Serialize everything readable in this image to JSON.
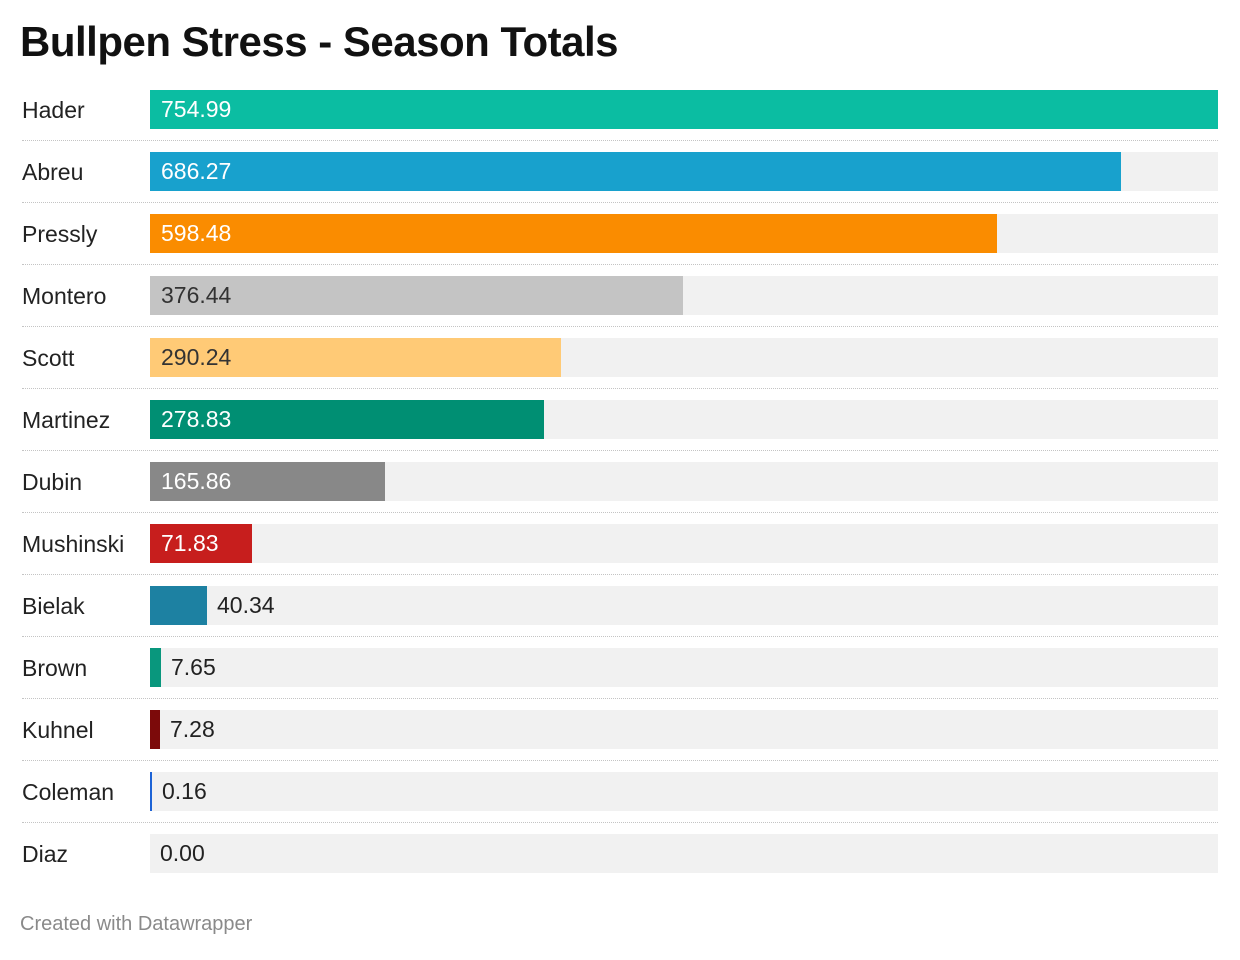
{
  "chart_data": {
    "type": "bar",
    "title": "Bullpen Stress - Season Totals",
    "categories": [
      "Hader",
      "Abreu",
      "Pressly",
      "Montero",
      "Scott",
      "Martinez",
      "Dubin",
      "Mushinski",
      "Bielak",
      "Brown",
      "Kuhnel",
      "Coleman",
      "Diaz"
    ],
    "values": [
      754.99,
      686.27,
      598.48,
      376.44,
      290.24,
      278.83,
      165.86,
      71.83,
      40.34,
      7.65,
      7.28,
      0.16,
      0.0
    ],
    "value_labels": [
      "754.99",
      "686.27",
      "598.48",
      "376.44",
      "290.24",
      "278.83",
      "165.86",
      "71.83",
      "40.34",
      "7.65",
      "7.28",
      "0.16",
      "0.00"
    ],
    "colors": [
      "#0bbda2",
      "#18a1cd",
      "#fa8c00",
      "#c4c4c4",
      "#ffca76",
      "#008f73",
      "#888888",
      "#c71e1d",
      "#1d81a2",
      "#09977d",
      "#7c0a0a",
      "#1d63d6",
      "#cccccc"
    ],
    "label_colors": [
      "#ffffff",
      "#ffffff",
      "#ffffff",
      "#333333",
      "#333333",
      "#ffffff",
      "#ffffff",
      "#ffffff",
      "#222222",
      "#222222",
      "#222222",
      "#222222",
      "#222222"
    ],
    "xlim": [
      0,
      754.99
    ],
    "orientation": "horizontal",
    "grid": false,
    "track_color": "#f1f1f1"
  },
  "footer": {
    "credit": "Created with Datawrapper"
  }
}
